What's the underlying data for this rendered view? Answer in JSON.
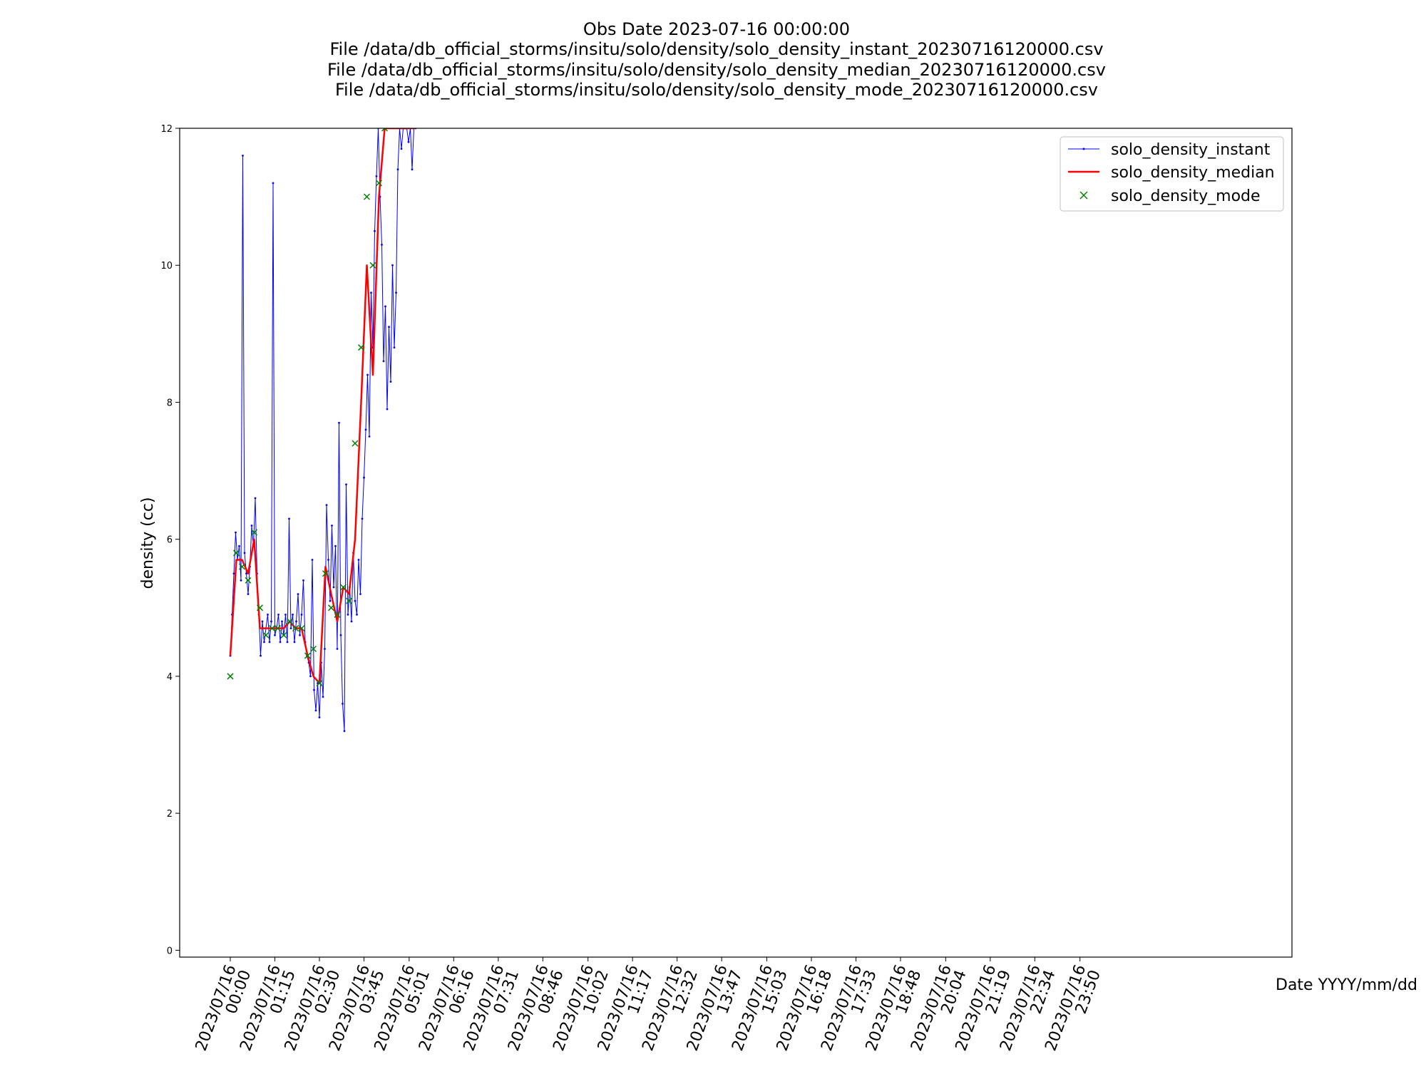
{
  "chart_data": {
    "type": "line",
    "title_lines": [
      "Obs Date 2023-07-16 00:00:00",
      "File /data/db_official_storms/insitu/solo/density/solo_density_instant_20230716120000.csv",
      "File /data/db_official_storms/insitu/solo/density/solo_density_median_20230716120000.csv",
      "File /data/db_official_storms/insitu/solo/density/solo_density_mode_20230716120000.csv"
    ],
    "xlabel": "Date YYYY/mm/dd",
    "ylabel": "density (cc)",
    "ylim": [
      -0.1,
      12
    ],
    "xlim_hours": [
      -1.42,
      29.78
    ],
    "yticks": [
      0,
      2,
      4,
      6,
      8,
      10,
      12
    ],
    "xticks": [
      {
        "hour": 0.0,
        "line1": "2023/07/16",
        "line2": "00:00"
      },
      {
        "hour": 1.25,
        "line1": "2023/07/16",
        "line2": "01:15"
      },
      {
        "hour": 2.5,
        "line1": "2023/07/16",
        "line2": "02:30"
      },
      {
        "hour": 3.75,
        "line1": "2023/07/16",
        "line2": "03:45"
      },
      {
        "hour": 5.0167,
        "line1": "2023/07/16",
        "line2": "05:01"
      },
      {
        "hour": 6.2667,
        "line1": "2023/07/16",
        "line2": "06:16"
      },
      {
        "hour": 7.5167,
        "line1": "2023/07/16",
        "line2": "07:31"
      },
      {
        "hour": 8.7667,
        "line1": "2023/07/16",
        "line2": "08:46"
      },
      {
        "hour": 10.0333,
        "line1": "2023/07/16",
        "line2": "10:02"
      },
      {
        "hour": 11.2833,
        "line1": "2023/07/16",
        "line2": "11:17"
      },
      {
        "hour": 12.5333,
        "line1": "2023/07/16",
        "line2": "12:32"
      },
      {
        "hour": 13.7833,
        "line1": "2023/07/16",
        "line2": "13:47"
      },
      {
        "hour": 15.05,
        "line1": "2023/07/16",
        "line2": "15:03"
      },
      {
        "hour": 16.3,
        "line1": "2023/07/16",
        "line2": "16:18"
      },
      {
        "hour": 17.55,
        "line1": "2023/07/16",
        "line2": "17:33"
      },
      {
        "hour": 18.8,
        "line1": "2023/07/16",
        "line2": "18:48"
      },
      {
        "hour": 20.0667,
        "line1": "2023/07/16",
        "line2": "20:04"
      },
      {
        "hour": 21.3167,
        "line1": "2023/07/16",
        "line2": "21:19"
      },
      {
        "hour": 22.5667,
        "line1": "2023/07/16",
        "line2": "22:34"
      },
      {
        "hour": 23.8333,
        "line1": "2023/07/16",
        "line2": "23:50"
      }
    ],
    "legend_position": "top-right",
    "grid": false,
    "series": [
      {
        "name": "solo_density_instant",
        "color": "#0000ff",
        "style": "line-with-small-markers",
        "x_hours": [
          0.0,
          0.05,
          0.1,
          0.15,
          0.2,
          0.25,
          0.3,
          0.35,
          0.4,
          0.45,
          0.5,
          0.55,
          0.6,
          0.65,
          0.7,
          0.75,
          0.8,
          0.85,
          0.9,
          0.95,
          1.0,
          1.05,
          1.1,
          1.15,
          1.2,
          1.25,
          1.3,
          1.35,
          1.4,
          1.45,
          1.5,
          1.55,
          1.6,
          1.65,
          1.7,
          1.75,
          1.8,
          1.85,
          1.9,
          1.95,
          2.0,
          2.05,
          2.1,
          2.15,
          2.2,
          2.25,
          2.3,
          2.35,
          2.4,
          2.45,
          2.5,
          2.55,
          2.6,
          2.65,
          2.7,
          2.75,
          2.8,
          2.85,
          2.9,
          2.95,
          3.0,
          3.05,
          3.1,
          3.15,
          3.2,
          3.25,
          3.3,
          3.35,
          3.4,
          3.45,
          3.5,
          3.55,
          3.6,
          3.65,
          3.7,
          3.75,
          3.8,
          3.85,
          3.9,
          3.95,
          4.0,
          4.05,
          4.1,
          4.15,
          4.2,
          4.25,
          4.3,
          4.35,
          4.4,
          4.45,
          4.5,
          4.55,
          4.6,
          4.65,
          4.7,
          4.75,
          4.8,
          4.85,
          4.9,
          4.95,
          5.0,
          5.05,
          5.1,
          5.15,
          5.2
        ],
        "values": [
          4.3,
          4.9,
          5.5,
          6.1,
          5.7,
          5.9,
          5.4,
          11.6,
          5.8,
          5.5,
          5.2,
          5.6,
          6.2,
          5.9,
          6.6,
          5.5,
          4.9,
          4.3,
          4.8,
          4.5,
          4.7,
          4.9,
          4.5,
          4.8,
          11.2,
          4.6,
          4.7,
          4.9,
          4.5,
          4.8,
          4.6,
          4.9,
          4.5,
          6.3,
          4.7,
          4.9,
          4.5,
          4.8,
          5.2,
          4.6,
          4.9,
          5.4,
          4.5,
          4.3,
          4.2,
          4.0,
          5.7,
          3.8,
          3.5,
          3.9,
          3.4,
          4.2,
          3.7,
          4.4,
          6.5,
          5.7,
          5.1,
          6.2,
          5.3,
          5.9,
          4.4,
          7.7,
          4.6,
          3.6,
          3.2,
          6.8,
          4.9,
          5.3,
          4.8,
          5.8,
          5.1,
          4.9,
          5.7,
          5.2,
          6.3,
          6.9,
          7.6,
          8.4,
          7.5,
          9.6,
          8.8,
          10.5,
          11.3,
          12.0,
          11.0,
          10.3,
          8.6,
          9.4,
          7.9,
          9.1,
          8.3,
          10.0,
          8.8,
          9.6,
          11.4,
          12.0,
          11.7,
          12.0,
          12.0,
          12.0,
          11.8,
          12.0,
          11.4,
          12.0,
          12.0
        ]
      },
      {
        "name": "solo_density_median",
        "color": "#ff0000",
        "style": "line",
        "x_hours": [
          0.0,
          0.17,
          0.33,
          0.5,
          0.67,
          0.83,
          1.0,
          1.17,
          1.33,
          1.5,
          1.67,
          1.83,
          2.0,
          2.17,
          2.33,
          2.5,
          2.67,
          2.83,
          3.0,
          3.17,
          3.33,
          3.5,
          3.67,
          3.83,
          4.0,
          4.17,
          4.33,
          4.5,
          4.67,
          4.83,
          5.0,
          5.17
        ],
        "values": [
          4.3,
          5.7,
          5.7,
          5.5,
          6.0,
          4.7,
          4.7,
          4.7,
          4.7,
          4.7,
          4.8,
          4.7,
          4.7,
          4.3,
          4.0,
          3.9,
          5.6,
          5.2,
          4.8,
          5.3,
          5.2,
          6.0,
          8.0,
          10.0,
          8.4,
          11.0,
          12.0,
          12.0,
          12.0,
          12.0,
          12.0,
          12.0
        ]
      },
      {
        "name": "solo_density_mode",
        "color": "#008000",
        "style": "x-markers",
        "x_hours": [
          0.0,
          0.17,
          0.33,
          0.5,
          0.67,
          0.83,
          1.0,
          1.17,
          1.33,
          1.5,
          1.67,
          1.83,
          2.0,
          2.17,
          2.33,
          2.5,
          2.67,
          2.83,
          3.0,
          3.17,
          3.33,
          3.5,
          3.67,
          3.83,
          4.0,
          4.17,
          4.33
        ],
        "values": [
          4.0,
          5.8,
          5.6,
          5.4,
          6.1,
          5.0,
          4.6,
          4.7,
          4.7,
          4.6,
          4.8,
          4.7,
          4.7,
          4.3,
          4.4,
          3.9,
          5.5,
          5.0,
          4.9,
          5.3,
          5.1,
          7.4,
          8.8,
          11.0,
          10.0,
          11.2,
          12.0
        ]
      }
    ]
  }
}
